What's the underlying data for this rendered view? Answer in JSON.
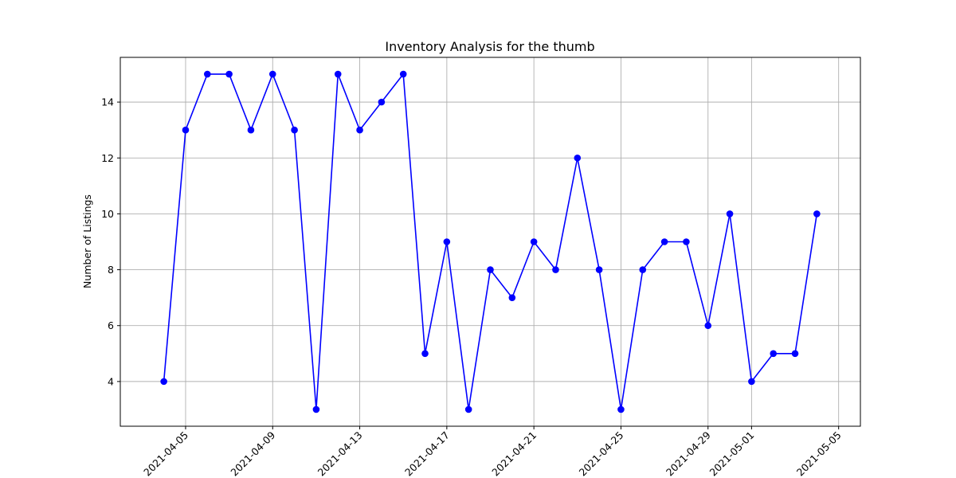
{
  "chart_data": {
    "type": "line",
    "title": "Inventory Analysis for the thumb",
    "xlabel": "",
    "ylabel": "Number of Listings",
    "grid": true,
    "legend": "none",
    "line_color": "#0000ff",
    "marker_color": "#0000ff",
    "grid_color": "#b0b0b0",
    "xlim": [
      "2021-04-02",
      "2021-05-06"
    ],
    "ylim": [
      2.4,
      15.6
    ],
    "x_ticks": [
      "2021-04-05",
      "2021-04-09",
      "2021-04-13",
      "2021-04-17",
      "2021-04-21",
      "2021-04-25",
      "2021-04-29",
      "2021-05-01",
      "2021-05-05"
    ],
    "y_ticks": [
      4,
      6,
      8,
      10,
      12,
      14
    ],
    "series": [
      {
        "x": [
          "2021-04-04",
          "2021-04-05",
          "2021-04-06",
          "2021-04-07",
          "2021-04-08",
          "2021-04-09",
          "2021-04-10",
          "2021-04-11",
          "2021-04-12",
          "2021-04-13",
          "2021-04-14",
          "2021-04-15",
          "2021-04-16",
          "2021-04-17",
          "2021-04-18",
          "2021-04-19",
          "2021-04-20",
          "2021-04-21",
          "2021-04-22",
          "2021-04-23",
          "2021-04-24",
          "2021-04-25",
          "2021-04-26",
          "2021-04-27",
          "2021-04-28",
          "2021-04-29",
          "2021-04-30",
          "2021-05-01",
          "2021-05-02",
          "2021-05-03",
          "2021-05-04"
        ],
        "values": [
          4,
          13,
          15,
          15,
          13,
          15,
          13,
          3,
          15,
          13,
          14,
          15,
          5,
          9,
          3,
          8,
          7,
          9,
          8,
          12,
          8,
          3,
          8,
          9,
          9,
          6,
          10,
          4,
          5,
          5,
          10
        ]
      }
    ]
  }
}
